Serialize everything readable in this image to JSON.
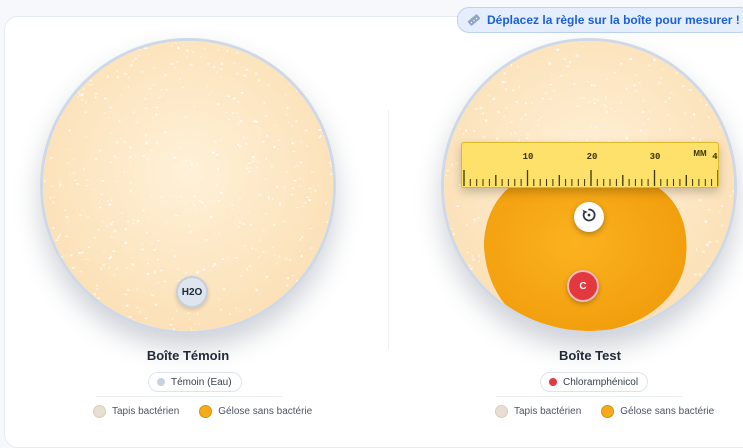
{
  "hint": {
    "text": "Déplacez la règle sur la boîte pour mesurer !",
    "icon": "ruler-icon"
  },
  "colors": {
    "lawn": "#fde7c2",
    "inhibition_zone": "#f6a817",
    "dish_border": "#cfd8e6",
    "control_disk": "#dfe5ee",
    "test_disk": "#e4383f",
    "ruler": "#fde16a",
    "hint_text": "#1d5fd6"
  },
  "dishes": {
    "control": {
      "disk_label": "H2O",
      "title": "Boîte Témoin",
      "substance": "Témoin (Eau)",
      "substance_color": "#c7d1df"
    },
    "test": {
      "disk_label": "C",
      "title": "Boîte Test",
      "substance": "Chloramphénicol",
      "substance_color": "#e4383f",
      "rotate_icon": "rotate-icon"
    }
  },
  "ruler": {
    "unit": "MM",
    "labels": [
      "10",
      "20",
      "30",
      "4"
    ]
  },
  "legend": {
    "lawn": "Tapis bactérien",
    "clear": "Gélose sans bactérie"
  }
}
